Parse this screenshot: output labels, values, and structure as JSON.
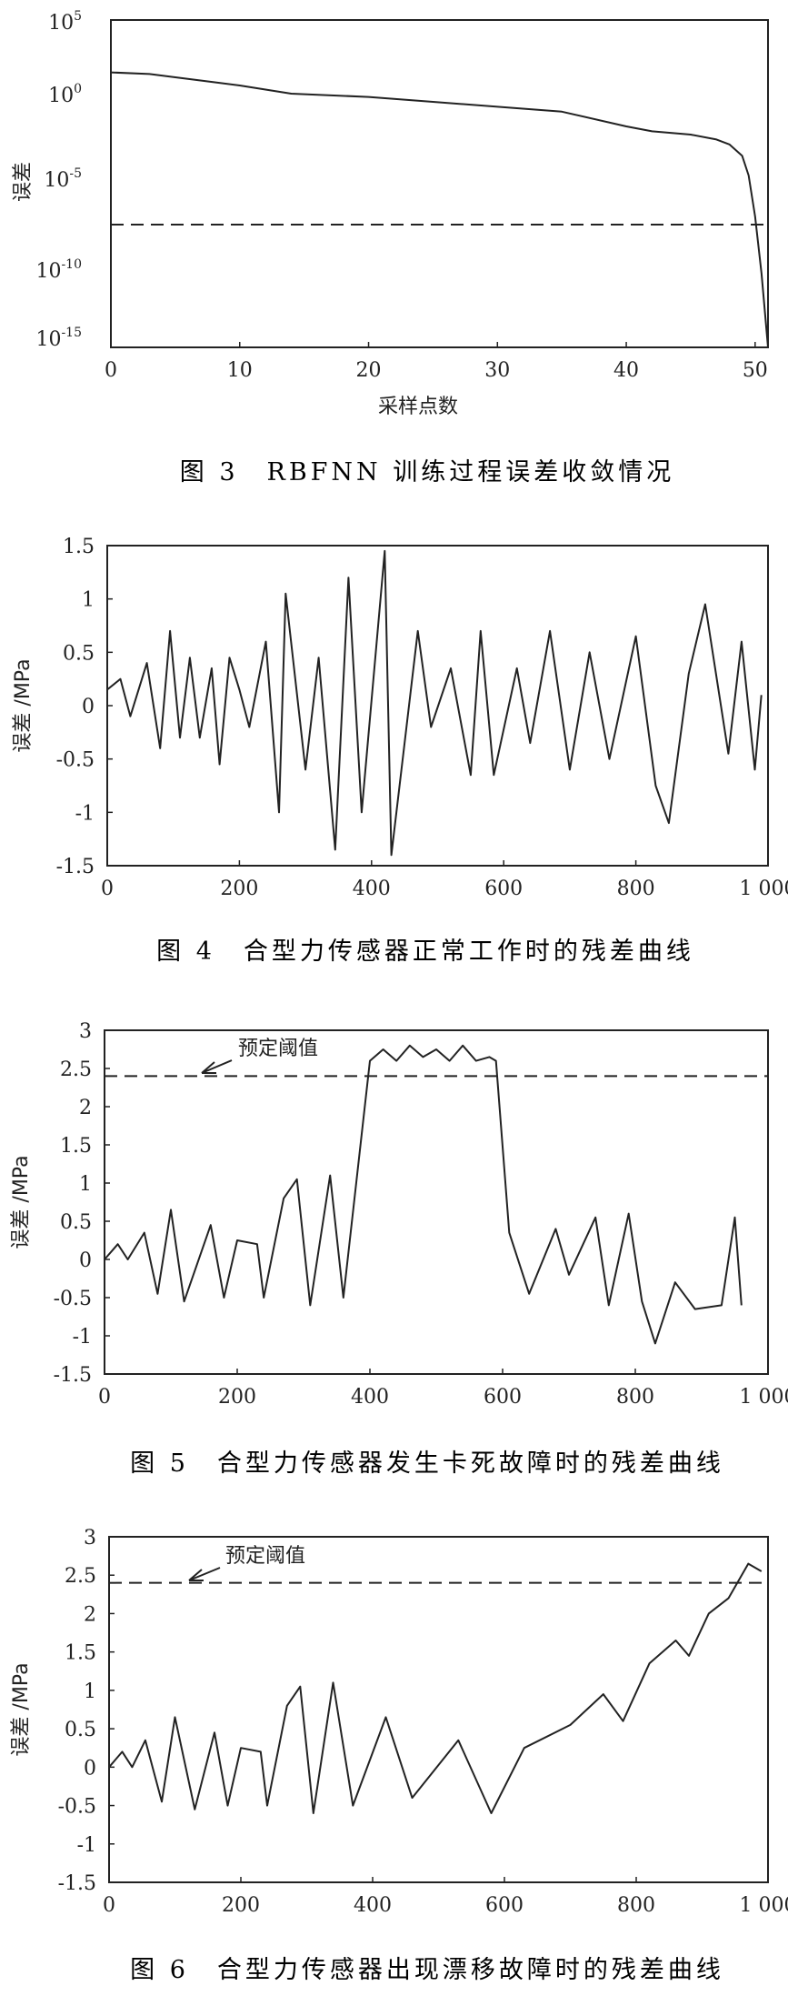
{
  "figures": {
    "fig3": {
      "caption": "图 3　RBFNN 训练过程误差收敛情况",
      "ylabel": "误差",
      "xlabel": "采样点数",
      "x_ticks": [
        "0",
        "10",
        "20",
        "30",
        "40",
        "50"
      ],
      "y_ticks": [
        {
          "base": "10",
          "exp": "5"
        },
        {
          "base": "10",
          "exp": "0"
        },
        {
          "base": "10",
          "exp": "-5"
        },
        {
          "base": "10",
          "exp": "-10"
        },
        {
          "base": "10",
          "exp": "-15"
        }
      ]
    },
    "fig4": {
      "caption": "图 4　合型力传感器正常工作时的残差曲线",
      "ylabel": "误差 /MPa",
      "x_ticks": [
        "0",
        "200",
        "400",
        "600",
        "800",
        "1 000"
      ],
      "y_ticks": [
        "1.5",
        "1",
        "0.5",
        "0",
        "-0.5",
        "-1",
        "-1.5"
      ]
    },
    "fig5": {
      "caption": "图 5　合型力传感器发生卡死故障时的残差曲线",
      "ylabel": "误差 /MPa",
      "threshold_label": "预定阈值",
      "x_ticks": [
        "0",
        "200",
        "400",
        "600",
        "800",
        "1 000"
      ],
      "y_ticks": [
        "3",
        "2.5",
        "2",
        "1.5",
        "1",
        "0.5",
        "0",
        "-0.5",
        "-1",
        "-1.5"
      ]
    },
    "fig6": {
      "caption": "图 6　合型力传感器出现漂移故障时的残差曲线",
      "ylabel": "误差 /MPa",
      "threshold_label": "预定阈值",
      "x_ticks": [
        "0",
        "200",
        "400",
        "600",
        "800",
        "1 000"
      ],
      "y_ticks": [
        "3",
        "2.5",
        "2",
        "1.5",
        "1",
        "0.5",
        "0",
        "-0.5",
        "-1",
        "-1.5"
      ]
    }
  },
  "chart_data": [
    {
      "type": "line",
      "title": "图 3　RBFNN 训练过程误差收敛情况",
      "xlabel": "采样点数",
      "ylabel": "误差",
      "xlim": [
        0,
        51
      ],
      "ylim": [
        -15,
        5
      ],
      "y_scale": "log10",
      "grid": false,
      "series": [
        {
          "x": [
            0,
            3,
            5,
            8,
            10,
            14,
            20,
            25,
            30,
            35,
            40,
            42,
            45,
            47,
            48,
            49,
            49.5,
            50,
            50.5,
            51
          ],
          "y": [
            1.8,
            1.7,
            1.5,
            1.2,
            1.0,
            0.5,
            0.3,
            0,
            -0.3,
            -0.6,
            -1.5,
            -1.8,
            -2.0,
            -2.3,
            -2.6,
            -3.3,
            -4.5,
            -7.0,
            -10.5,
            -15
          ]
        }
      ],
      "reference_lines": [
        {
          "y": -7.5,
          "style": "dashed"
        }
      ]
    },
    {
      "type": "line",
      "title": "图 4　合型力传感器正常工作时的残差曲线",
      "ylabel": "误差 /MPa",
      "xlim": [
        0,
        1000
      ],
      "ylim": [
        -1.5,
        1.5
      ],
      "grid": false,
      "series": [
        {
          "x": [
            0,
            20,
            35,
            60,
            80,
            95,
            110,
            125,
            140,
            158,
            170,
            185,
            200,
            215,
            240,
            260,
            270,
            300,
            320,
            345,
            365,
            385,
            420,
            430,
            470,
            490,
            520,
            550,
            565,
            585,
            620,
            640,
            670,
            700,
            730,
            760,
            800,
            830,
            850,
            880,
            905,
            940,
            960,
            980,
            990
          ],
          "y": [
            0.15,
            0.25,
            -0.1,
            0.4,
            -0.4,
            0.7,
            -0.3,
            0.45,
            -0.3,
            0.35,
            -0.55,
            0.45,
            0.15,
            -0.2,
            0.6,
            -1.0,
            1.05,
            -0.6,
            0.45,
            -1.35,
            1.2,
            -1.0,
            1.45,
            -1.4,
            0.7,
            -0.2,
            0.35,
            -0.65,
            0.7,
            -0.65,
            0.35,
            -0.35,
            0.7,
            -0.6,
            0.5,
            -0.5,
            0.65,
            -0.75,
            -1.1,
            0.3,
            0.95,
            -0.45,
            0.6,
            -0.6,
            0.1
          ]
        }
      ]
    },
    {
      "type": "line",
      "title": "图 5　合型力传感器发生卡死故障时的残差曲线",
      "ylabel": "误差 /MPa",
      "xlim": [
        0,
        1000
      ],
      "ylim": [
        -1.5,
        3
      ],
      "grid": false,
      "annotations": [
        {
          "text": "预定阈值"
        }
      ],
      "series": [
        {
          "x": [
            0,
            20,
            35,
            60,
            80,
            100,
            120,
            160,
            180,
            200,
            230,
            240,
            270,
            290,
            310,
            340,
            360,
            400,
            420,
            440,
            460,
            480,
            500,
            520,
            540,
            560,
            580,
            590,
            610,
            640,
            680,
            700,
            740,
            760,
            790,
            810,
            830,
            860,
            890,
            930,
            950,
            960
          ],
          "y": [
            0.0,
            0.2,
            0.0,
            0.35,
            -0.45,
            0.65,
            -0.55,
            0.45,
            -0.5,
            0.25,
            0.2,
            -0.5,
            0.8,
            1.05,
            -0.6,
            1.1,
            -0.5,
            2.6,
            2.75,
            2.6,
            2.8,
            2.65,
            2.75,
            2.6,
            2.8,
            2.6,
            2.65,
            2.6,
            0.35,
            -0.45,
            0.4,
            -0.2,
            0.55,
            -0.6,
            0.6,
            -0.55,
            -1.1,
            -0.3,
            -0.65,
            -0.6,
            0.55,
            -0.6
          ]
        }
      ],
      "reference_lines": [
        {
          "y": 2.4,
          "style": "dashed"
        }
      ]
    },
    {
      "type": "line",
      "title": "图 6　合型力传感器出现漂移故障时的残差曲线",
      "ylabel": "误差 /MPa",
      "xlim": [
        0,
        1000
      ],
      "ylim": [
        -1.5,
        3
      ],
      "grid": false,
      "annotations": [
        {
          "text": "预定阈值"
        }
      ],
      "series": [
        {
          "x": [
            0,
            20,
            35,
            55,
            80,
            100,
            130,
            160,
            180,
            200,
            230,
            240,
            270,
            290,
            310,
            340,
            370,
            420,
            460,
            530,
            580,
            630,
            700,
            750,
            780,
            820,
            860,
            880,
            910,
            940,
            970,
            990
          ],
          "y": [
            0.0,
            0.2,
            0.0,
            0.35,
            -0.45,
            0.65,
            -0.55,
            0.45,
            -0.5,
            0.25,
            0.2,
            -0.5,
            0.8,
            1.05,
            -0.6,
            1.1,
            -0.5,
            0.65,
            -0.4,
            0.35,
            -0.6,
            0.25,
            0.55,
            0.95,
            0.6,
            1.35,
            1.65,
            1.45,
            2.0,
            2.2,
            2.65,
            2.55
          ]
        }
      ],
      "reference_lines": [
        {
          "y": 2.4,
          "style": "dashed"
        }
      ]
    }
  ]
}
